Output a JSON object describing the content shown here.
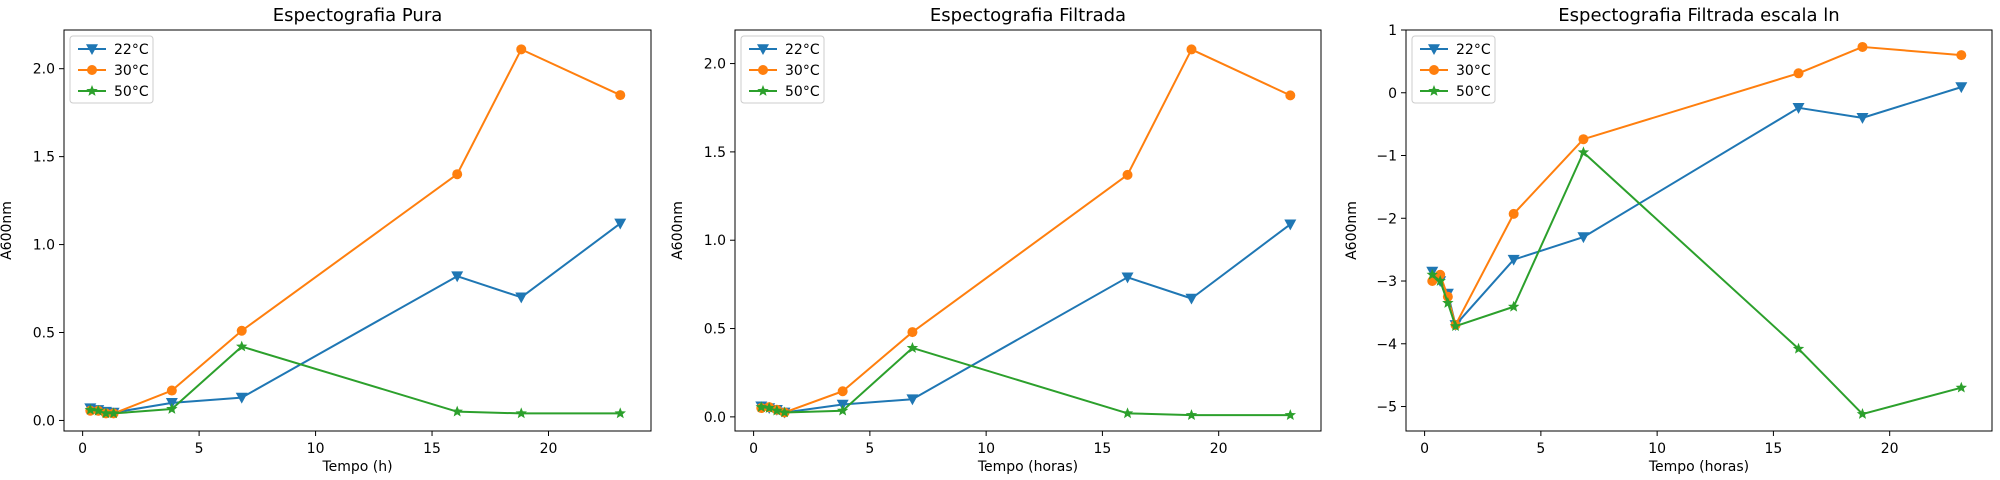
{
  "chart_data": [
    {
      "type": "line",
      "title": "Espectografia Pura",
      "xlabel": "Tempo (h)",
      "ylabel": "A600nm",
      "xlim": [
        -0.8,
        24.4
      ],
      "ylim": [
        -0.06,
        2.22
      ],
      "xticks": [
        0,
        5,
        10,
        15,
        20
      ],
      "xtick_labels": [
        "0",
        "5",
        "10",
        "15",
        "20"
      ],
      "yticks": [
        0.0,
        0.5,
        1.0,
        1.5,
        2.0
      ],
      "ytick_labels": [
        "0.0",
        "0.5",
        "1.0",
        "1.5",
        "2.0"
      ],
      "grid": false,
      "legend": "top-left",
      "series": [
        {
          "name": "22°C",
          "color": "#1f77b4",
          "marker": "triangle-down",
          "x": [
            0.33,
            0.67,
            1.0,
            1.33,
            3.83,
            6.83,
            16.08,
            18.83,
            23.08
          ],
          "y": [
            0.07,
            0.06,
            0.05,
            0.045,
            0.1,
            0.13,
            0.82,
            0.7,
            1.12
          ]
        },
        {
          "name": "30°C",
          "color": "#ff7f0e",
          "marker": "circle",
          "x": [
            0.33,
            0.67,
            1.0,
            1.33,
            3.83,
            6.83,
            16.08,
            18.83,
            23.08
          ],
          "y": [
            0.055,
            0.055,
            0.04,
            0.04,
            0.17,
            0.51,
            1.4,
            2.11,
            1.85
          ]
        },
        {
          "name": "50°C",
          "color": "#2ca02c",
          "marker": "star",
          "x": [
            0.33,
            0.67,
            1.0,
            1.33,
            3.83,
            6.83,
            16.08,
            18.83,
            23.08
          ],
          "y": [
            0.06,
            0.055,
            0.04,
            0.04,
            0.065,
            0.42,
            0.05,
            0.04,
            0.04
          ]
        }
      ]
    },
    {
      "type": "line",
      "title": "Espectografia Filtrada",
      "xlabel": "Tempo (horas)",
      "ylabel": "A600nm",
      "xlim": [
        -0.8,
        24.4
      ],
      "ylim": [
        -0.08,
        2.19
      ],
      "xticks": [
        0,
        5,
        10,
        15,
        20
      ],
      "xtick_labels": [
        "0",
        "5",
        "10",
        "15",
        "20"
      ],
      "yticks": [
        0.0,
        0.5,
        1.0,
        1.5,
        2.0
      ],
      "ytick_labels": [
        "0.0",
        "0.5",
        "1.0",
        "1.5",
        "2.0"
      ],
      "grid": false,
      "legend": "top-left",
      "series": [
        {
          "name": "22°C",
          "color": "#1f77b4",
          "marker": "triangle-down",
          "x": [
            0.33,
            0.67,
            1.0,
            1.33,
            3.83,
            6.83,
            16.08,
            18.83,
            23.08
          ],
          "y": [
            0.06,
            0.05,
            0.04,
            0.025,
            0.07,
            0.1,
            0.79,
            0.67,
            1.09
          ]
        },
        {
          "name": "30°C",
          "color": "#ff7f0e",
          "marker": "circle",
          "x": [
            0.33,
            0.67,
            1.0,
            1.33,
            3.83,
            6.83,
            16.08,
            18.83,
            23.08
          ],
          "y": [
            0.05,
            0.055,
            0.04,
            0.025,
            0.145,
            0.48,
            1.37,
            2.08,
            1.82
          ]
        },
        {
          "name": "50°C",
          "color": "#2ca02c",
          "marker": "star",
          "x": [
            0.33,
            0.67,
            1.0,
            1.33,
            3.83,
            6.83,
            16.08,
            18.83,
            23.08
          ],
          "y": [
            0.055,
            0.05,
            0.035,
            0.025,
            0.035,
            0.39,
            0.02,
            0.01,
            0.01
          ]
        }
      ]
    },
    {
      "type": "line",
      "title": "Espectografia Filtrada escala ln",
      "xlabel": "Tempo (horas)",
      "ylabel": "A600nm",
      "xlim": [
        -0.8,
        24.4
      ],
      "ylim": [
        -5.39,
        1.0
      ],
      "xticks": [
        0,
        5,
        10,
        15,
        20
      ],
      "xtick_labels": [
        "0",
        "5",
        "10",
        "15",
        "20"
      ],
      "yticks": [
        -5,
        -4,
        -3,
        -2,
        -1,
        0,
        1
      ],
      "ytick_labels": [
        "−5",
        "−4",
        "−3",
        "−2",
        "−1",
        "0",
        "1"
      ],
      "grid": false,
      "legend": "top-left",
      "series": [
        {
          "name": "22°C",
          "color": "#1f77b4",
          "marker": "triangle-down",
          "x": [
            0.33,
            0.67,
            1.0,
            1.33,
            3.83,
            6.83,
            16.08,
            18.83,
            23.08
          ],
          "y": [
            -2.85,
            -3.0,
            -3.2,
            -3.7,
            -2.66,
            -2.3,
            -0.24,
            -0.4,
            0.09
          ]
        },
        {
          "name": "30°C",
          "color": "#ff7f0e",
          "marker": "circle",
          "x": [
            0.33,
            0.67,
            1.0,
            1.33,
            3.83,
            6.83,
            16.08,
            18.83,
            23.08
          ],
          "y": [
            -3.0,
            -2.9,
            -3.25,
            -3.7,
            -1.93,
            -0.74,
            0.31,
            0.73,
            0.6
          ]
        },
        {
          "name": "50°C",
          "color": "#2ca02c",
          "marker": "star",
          "x": [
            0.33,
            0.67,
            1.0,
            1.33,
            3.83,
            6.83,
            16.08,
            18.83,
            23.08
          ],
          "y": [
            -2.9,
            -3.0,
            -3.35,
            -3.72,
            -3.41,
            -0.95,
            -4.08,
            -5.12,
            -4.7
          ]
        }
      ]
    }
  ]
}
